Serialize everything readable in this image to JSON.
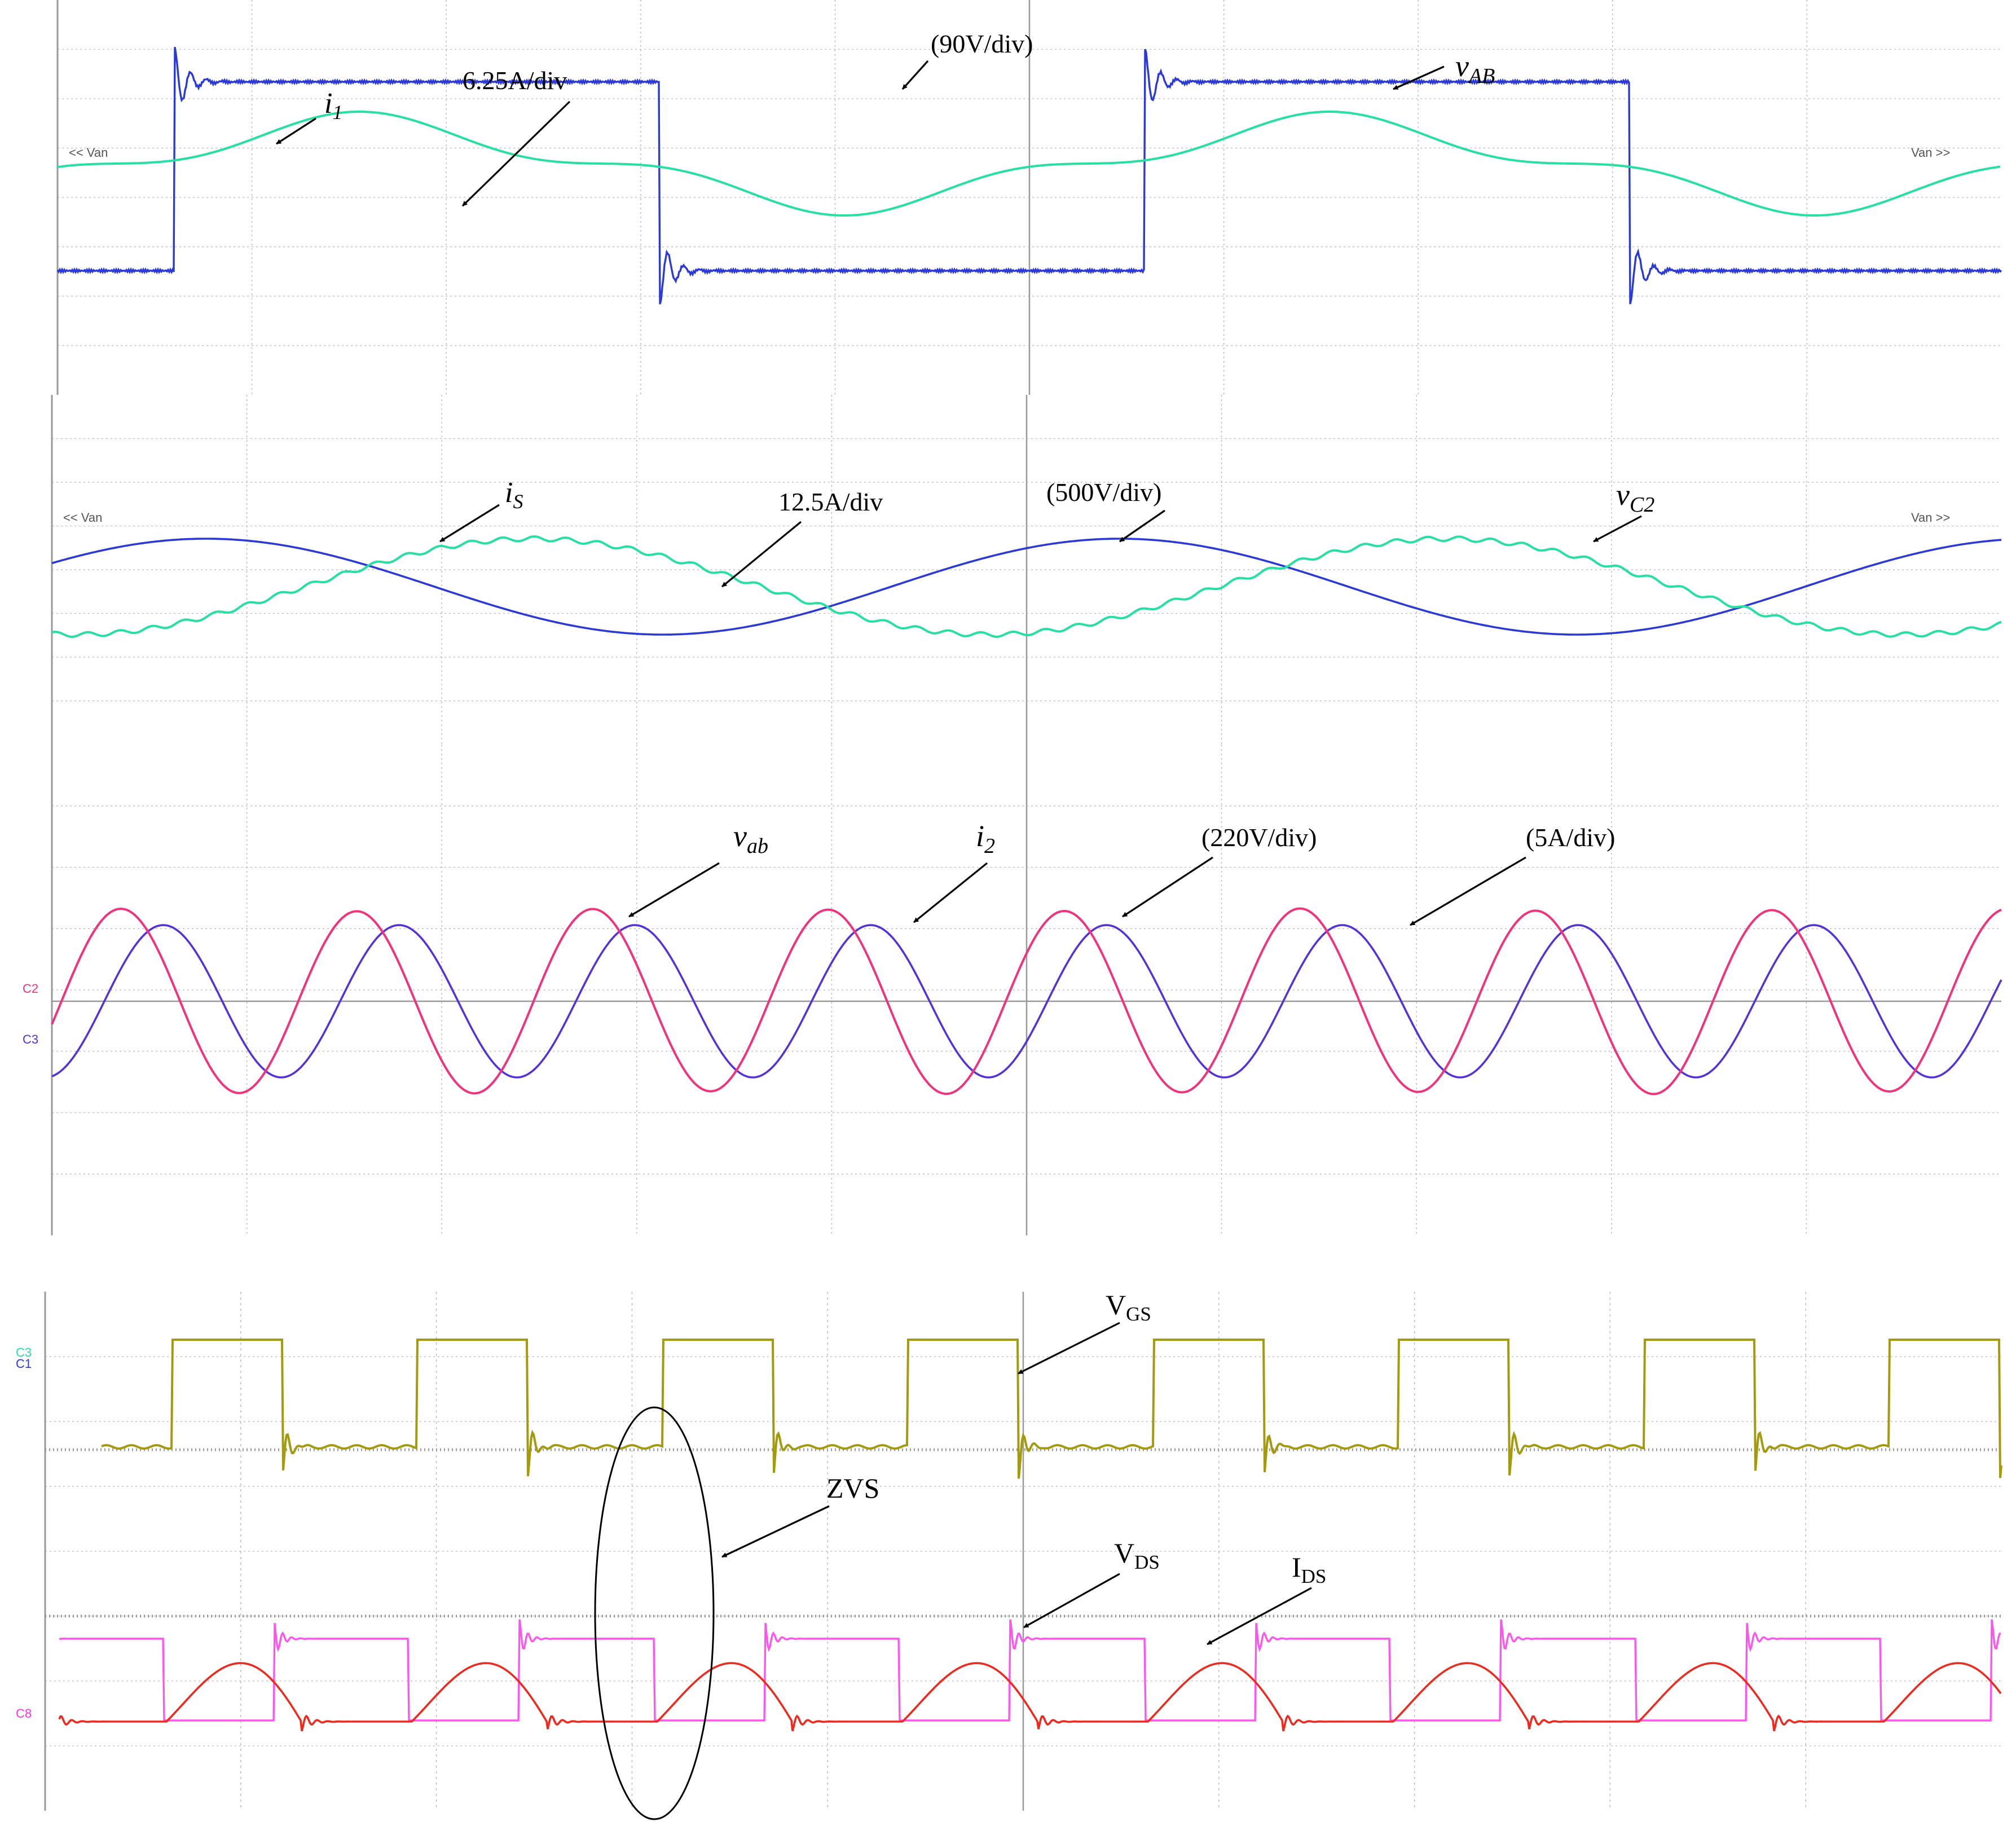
{
  "colors": {
    "blue": "#2b3ad6",
    "green": "#25e0a0",
    "pink": "#f0337c",
    "violet": "#5532d8",
    "olive": "#a39a10",
    "magenta": "#ff55ee",
    "red": "#ee2a1e",
    "grid": "#b8b8b8",
    "axis": "#999999",
    "tag_green": "#25e0a0",
    "tag_pink": "#f0337c",
    "tag_violet": "#5532d8",
    "tag_blue": "#2b3ad6",
    "tag_magenta": "#ff33dd"
  },
  "chart_data": [
    {
      "type": "line",
      "panel": 1,
      "series": [
        {
          "name": "vAB",
          "scale": "90V/div",
          "waveform": "square with ringing",
          "color": "blue"
        },
        {
          "name": "i1",
          "scale": "6.25A/div",
          "waveform": "distorted sine",
          "color": "green"
        }
      ],
      "annotations": [
        {
          "text": "i",
          "sub": "1",
          "italic": true
        },
        {
          "text": "6.25A/div"
        },
        {
          "text": "(90V/div)"
        },
        {
          "text": "v",
          "sub": "AB",
          "italic": true
        }
      ],
      "marker_left": "<< Van",
      "marker_right": "Van >>"
    },
    {
      "type": "line",
      "panel": 2,
      "series": [
        {
          "name": "iS",
          "scale": "12.5A/div",
          "waveform": "sine",
          "color": "green"
        },
        {
          "name": "vC2",
          "scale": "500V/div",
          "waveform": "sine",
          "color": "blue"
        }
      ],
      "annotations": [
        {
          "text": "i",
          "sub": "S",
          "italic": true
        },
        {
          "text": "12.5A/div"
        },
        {
          "text": "(500V/div)"
        },
        {
          "text": "v",
          "sub": "C2",
          "italic": true
        }
      ],
      "marker_left": "<< Van",
      "marker_right": "Van >>"
    },
    {
      "type": "line",
      "panel": 3,
      "series": [
        {
          "name": "vab",
          "scale": "220V/div",
          "waveform": "sine",
          "color": "pink",
          "channel": "C2"
        },
        {
          "name": "i2",
          "scale": "5A/div",
          "waveform": "sine",
          "color": "violet",
          "channel": "C3"
        }
      ],
      "annotations": [
        {
          "text": "v",
          "sub": "ab",
          "italic": true
        },
        {
          "text": "i",
          "sub": "2",
          "italic": true
        },
        {
          "text": "(220V/div)"
        },
        {
          "text": "(5A/div)"
        }
      ],
      "channel_tags": [
        "C2",
        "C3"
      ]
    },
    {
      "type": "line",
      "panel": 4,
      "series": [
        {
          "name": "VGS",
          "waveform": "square",
          "color": "olive"
        },
        {
          "name": "VDS",
          "waveform": "square with ringing",
          "color": "magenta"
        },
        {
          "name": "IDS",
          "waveform": "pulsed half-sine",
          "color": "red"
        }
      ],
      "annotations": [
        {
          "text": "V",
          "sub": "GS",
          "italic": false
        },
        {
          "text": "ZVS"
        },
        {
          "text": "V",
          "sub": "DS",
          "italic": false
        },
        {
          "text": "I",
          "sub": "DS",
          "italic": false
        }
      ],
      "channel_tags": [
        "C3",
        "C1",
        "C8"
      ]
    }
  ]
}
